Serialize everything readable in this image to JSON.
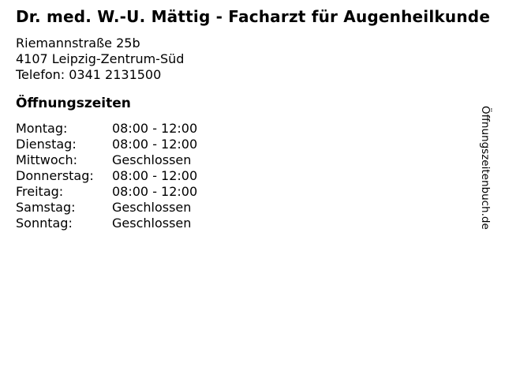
{
  "title": "Dr. med. W.-U. Mättig - Facharzt für Augenheilkunde",
  "address": {
    "street": "Riemannstraße 25b",
    "city": "4107 Leipzig-Zentrum-Süd",
    "phone": "Telefon: 0341 2131500"
  },
  "hours": {
    "heading": "Öffnungszeiten",
    "rows": [
      {
        "day": "Montag:",
        "time": "08:00 - 12:00"
      },
      {
        "day": "Dienstag:",
        "time": "08:00 - 12:00"
      },
      {
        "day": "Mittwoch:",
        "time": "Geschlossen"
      },
      {
        "day": "Donnerstag:",
        "time": "08:00 - 12:00"
      },
      {
        "day": "Freitag:",
        "time": "08:00 - 12:00"
      },
      {
        "day": "Samstag:",
        "time": "Geschlossen"
      },
      {
        "day": "Sonntag:",
        "time": "Geschlossen"
      }
    ]
  },
  "watermark": "Öffnungszeitenbuch.de",
  "colors": {
    "text": "#000000",
    "background": "#ffffff"
  }
}
